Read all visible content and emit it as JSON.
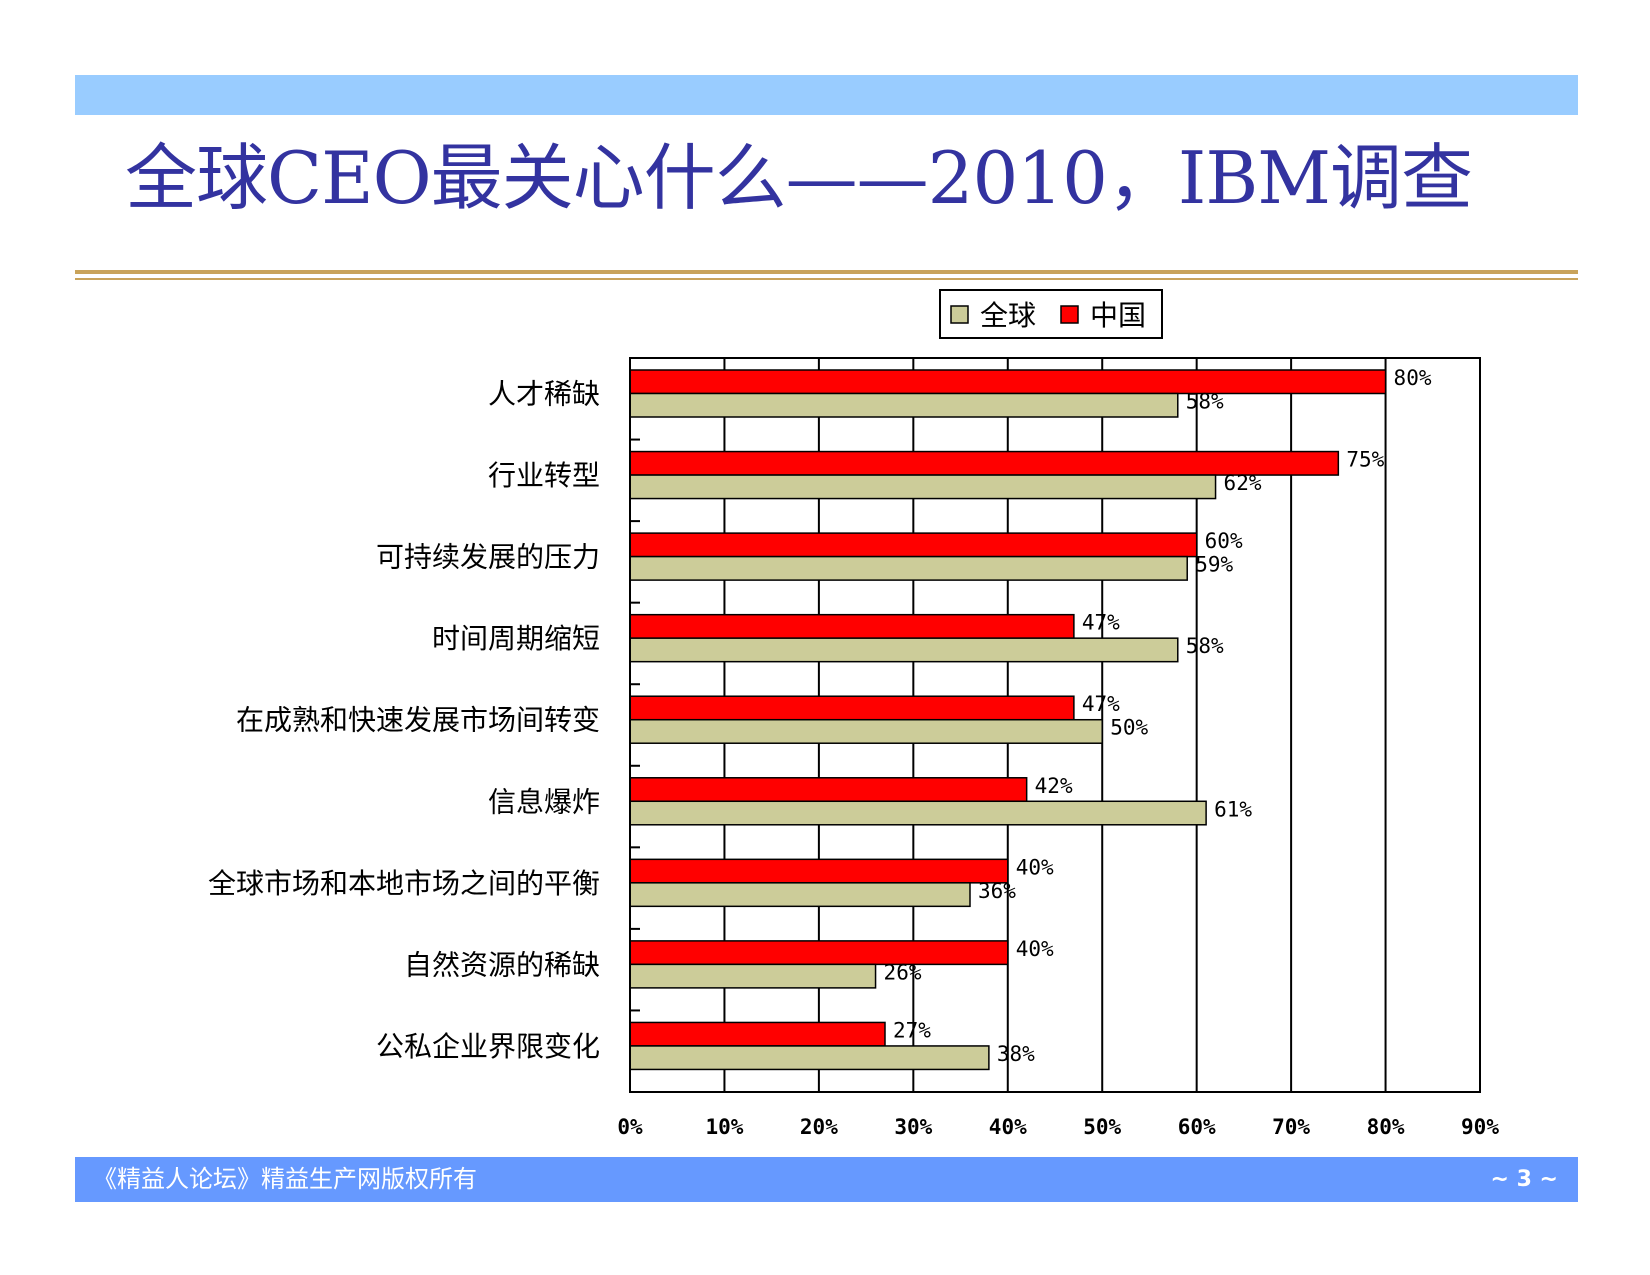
{
  "slide": {
    "title": "全球CEO最关心什么——2010，IBM调查",
    "footer": "《精益人论坛》精益生产网版权所有",
    "page_number": "~ 3 ~"
  },
  "colors": {
    "header_band": "#99ccff",
    "title_text": "#3333a0",
    "rule": "#c9a35a",
    "footer_band": "#6699ff",
    "series_global": "#cccc99",
    "series_china": "#ff0000"
  },
  "chart_data": {
    "type": "bar",
    "orientation": "horizontal",
    "categories": [
      "人才稀缺",
      "行业转型",
      "可持续发展的压力",
      "时间周期缩短",
      "在成熟和快速发展市场间转变",
      "信息爆炸",
      "全球市场和本地市场之间的平衡",
      "自然资源的稀缺",
      "公私企业界限变化"
    ],
    "series": [
      {
        "name": "全球",
        "color": "#cccc99",
        "values": [
          58,
          62,
          59,
          58,
          50,
          61,
          36,
          26,
          38
        ]
      },
      {
        "name": "中国",
        "color": "#ff0000",
        "values": [
          80,
          75,
          60,
          47,
          47,
          42,
          40,
          40,
          27
        ]
      }
    ],
    "xlim": [
      0,
      90
    ],
    "x_ticks": [
      "0%",
      "10%",
      "20%",
      "30%",
      "40%",
      "50%",
      "60%",
      "70%",
      "80%",
      "90%"
    ],
    "value_suffix": "%",
    "grid": "vertical",
    "legend_position": "top-right"
  }
}
